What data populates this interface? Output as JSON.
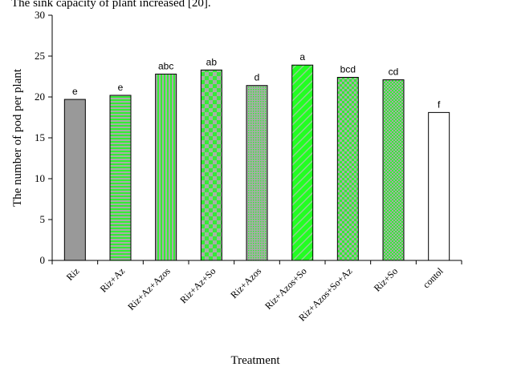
{
  "page": {
    "top_text": "The   sink   capacity   of   plant     increased [20]."
  },
  "chart_data": {
    "type": "bar",
    "xlabel": "Treatment",
    "ylabel": "The number  of pod per plant",
    "ylim": [
      0,
      30
    ],
    "yticks": [
      0,
      5,
      10,
      15,
      20,
      25,
      30
    ],
    "grid": false,
    "legend": "none",
    "categories": [
      "Riz",
      "Riz+Az",
      "Riz+Az+Azos",
      "Riz+Az+So",
      "Riz+Azos",
      "Riz+Azos+So",
      "Riz+Azos+So+Az",
      "Riz+So",
      "contol"
    ],
    "values": [
      19.7,
      20.2,
      22.8,
      23.3,
      21.4,
      23.9,
      22.4,
      22.1,
      18.1
    ],
    "significance_letters": [
      "e",
      "e",
      "abc",
      "ab",
      "d",
      "a",
      "bcd",
      "cd",
      "f"
    ],
    "bar_styles": [
      {
        "pattern": "solid",
        "fg": "#999999",
        "bg": "#999999"
      },
      {
        "pattern": "horizontal-stripes",
        "fg": "#33ee33",
        "bg": "#aaaaaa"
      },
      {
        "pattern": "vertical-stripes",
        "fg": "#33ee33",
        "bg": "#aaaaaa"
      },
      {
        "pattern": "large-checker",
        "fg": "#33ee33",
        "bg": "#aaaaaa"
      },
      {
        "pattern": "small-dots",
        "fg": "#33ee33",
        "bg": "#aaaaaa"
      },
      {
        "pattern": "diagonal-weave",
        "fg": "#22ff22",
        "bg": "#99cc99"
      },
      {
        "pattern": "checker",
        "fg": "#33ee33",
        "bg": "#aaaaaa"
      },
      {
        "pattern": "small-checker",
        "fg": "#33ee33",
        "bg": "#aaaaaa"
      },
      {
        "pattern": "solid",
        "fg": "#ffffff",
        "bg": "#ffffff"
      }
    ]
  }
}
